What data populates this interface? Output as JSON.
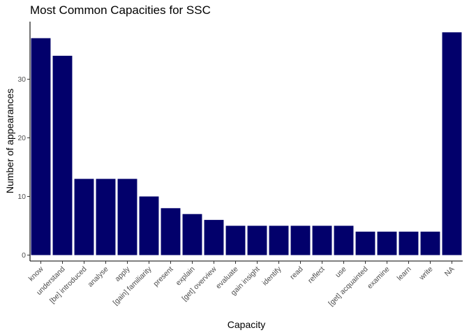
{
  "chart_data": {
    "type": "bar",
    "title": "Most Common Capacities for SSC",
    "xlabel": "Capacity",
    "ylabel": "Number of appearances",
    "categories": [
      "know",
      "understand",
      "[be] introduced",
      "analyse",
      "apply",
      "[gain] familiarity",
      "present",
      "explain",
      "[get] overview",
      "evaluate",
      "gain insight",
      "identify",
      "read",
      "reflect",
      "use",
      "[get] acquainted",
      "examine",
      "learn",
      "write",
      "NA"
    ],
    "values": [
      37,
      34,
      13,
      13,
      13,
      10,
      8,
      7,
      6,
      5,
      5,
      5,
      5,
      5,
      5,
      4,
      4,
      4,
      4,
      38
    ],
    "ylim": [
      0,
      39.8
    ],
    "yticks": [
      0,
      10,
      20,
      30
    ],
    "grid": false,
    "bar_color": "#02006B"
  }
}
